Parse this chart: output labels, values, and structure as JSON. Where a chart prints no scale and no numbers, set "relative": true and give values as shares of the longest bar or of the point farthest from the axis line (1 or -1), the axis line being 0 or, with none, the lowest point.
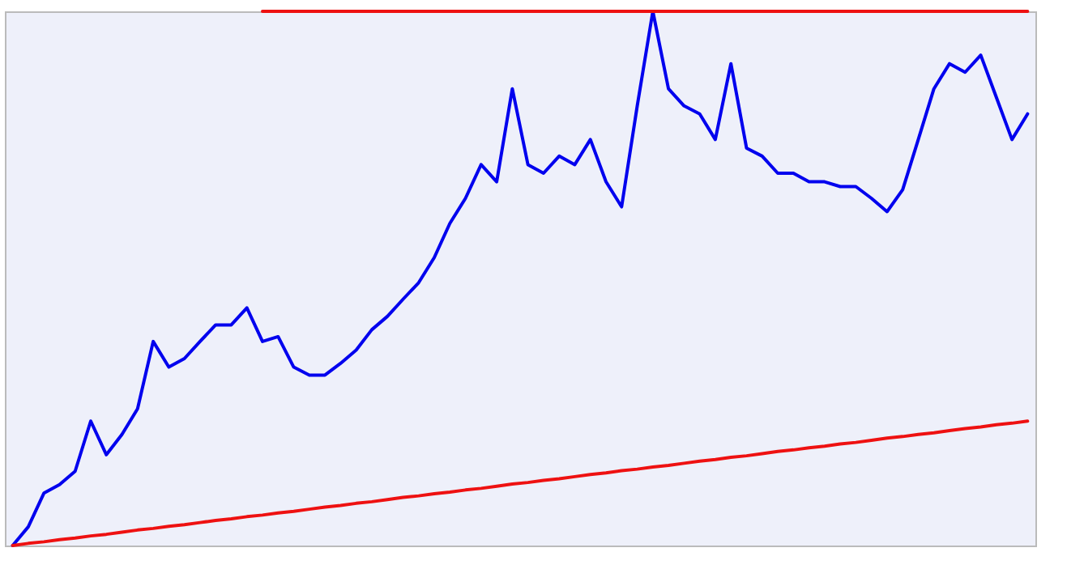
{
  "chart_data": {
    "type": "line",
    "relative": true,
    "categories": [
      null,
      null,
      null,
      null,
      null,
      null,
      null,
      null,
      null,
      null,
      null,
      null,
      null,
      null,
      null,
      null,
      null,
      null,
      null,
      null,
      null,
      null,
      null,
      null,
      null,
      null,
      null,
      null,
      null,
      null,
      null,
      null,
      null,
      null,
      null,
      null,
      null,
      null,
      null,
      null,
      null,
      null,
      null,
      null,
      null,
      null,
      null,
      null,
      null,
      null,
      null,
      null,
      null,
      null,
      null,
      null,
      null,
      null,
      null,
      null,
      null,
      null,
      null,
      null,
      null,
      null
    ],
    "series": [
      {
        "color": "#0000ee",
        "values": [
          0,
          0.035,
          0.098,
          0.114,
          0.139,
          0.233,
          0.17,
          0.208,
          0.256,
          0.382,
          0.334,
          0.35,
          0.382,
          0.413,
          0.413,
          0.445,
          0.382,
          0.391,
          0.334,
          0.319,
          0.319,
          0.341,
          0.366,
          0.404,
          0.429,
          0.461,
          0.492,
          0.539,
          0.603,
          0.65,
          0.713,
          0.681,
          0.855,
          0.713,
          0.697,
          0.729,
          0.713,
          0.76,
          0.681,
          0.634,
          0.823,
          1,
          0.855,
          0.823,
          0.808,
          0.76,
          0.902,
          0.744,
          0.729,
          0.697,
          0.697,
          0.681,
          0.681,
          0.672,
          0.672,
          0.65,
          0.625,
          0.666,
          0.76,
          0.855,
          0.902,
          0.886,
          0.918,
          0.839,
          0.76,
          0.808
        ]
      },
      {
        "color": "#ee1111",
        "values": [
          0,
          0.004,
          0.007,
          0.011,
          0.014,
          0.018,
          0.021,
          0.025,
          0.029,
          0.032,
          0.036,
          0.039,
          0.043,
          0.047,
          0.05,
          0.054,
          0.057,
          0.061,
          0.064,
          0.068,
          0.072,
          0.075,
          0.079,
          0.082,
          0.086,
          0.09,
          0.093,
          0.097,
          0.1,
          0.104,
          0.107,
          0.111,
          0.115,
          0.118,
          0.122,
          0.125,
          0.129,
          0.133,
          0.136,
          0.14,
          0.143,
          0.147,
          0.15,
          0.154,
          0.158,
          0.161,
          0.165,
          0.168,
          0.172,
          0.176,
          0.179,
          0.183,
          0.186,
          0.19,
          0.193,
          0.197,
          0.201,
          0.204,
          0.208,
          0.211,
          0.215,
          0.219,
          0.222,
          0.226,
          0.229,
          0.233
        ]
      },
      {
        "color": "#ee1111",
        "values": [
          null,
          null,
          null,
          null,
          null,
          null,
          null,
          null,
          null,
          null,
          null,
          null,
          null,
          null,
          null,
          null,
          1,
          1,
          1,
          1,
          1,
          1,
          1,
          1,
          1,
          1,
          1,
          1,
          1,
          1,
          1,
          1,
          1,
          1,
          1,
          1,
          1,
          1,
          1,
          1,
          1,
          1,
          1,
          1,
          1,
          1,
          1,
          1,
          1,
          1,
          1,
          1,
          1,
          1,
          1,
          1,
          1,
          1,
          1,
          1,
          1,
          1,
          1,
          1,
          1,
          1
        ]
      }
    ]
  }
}
